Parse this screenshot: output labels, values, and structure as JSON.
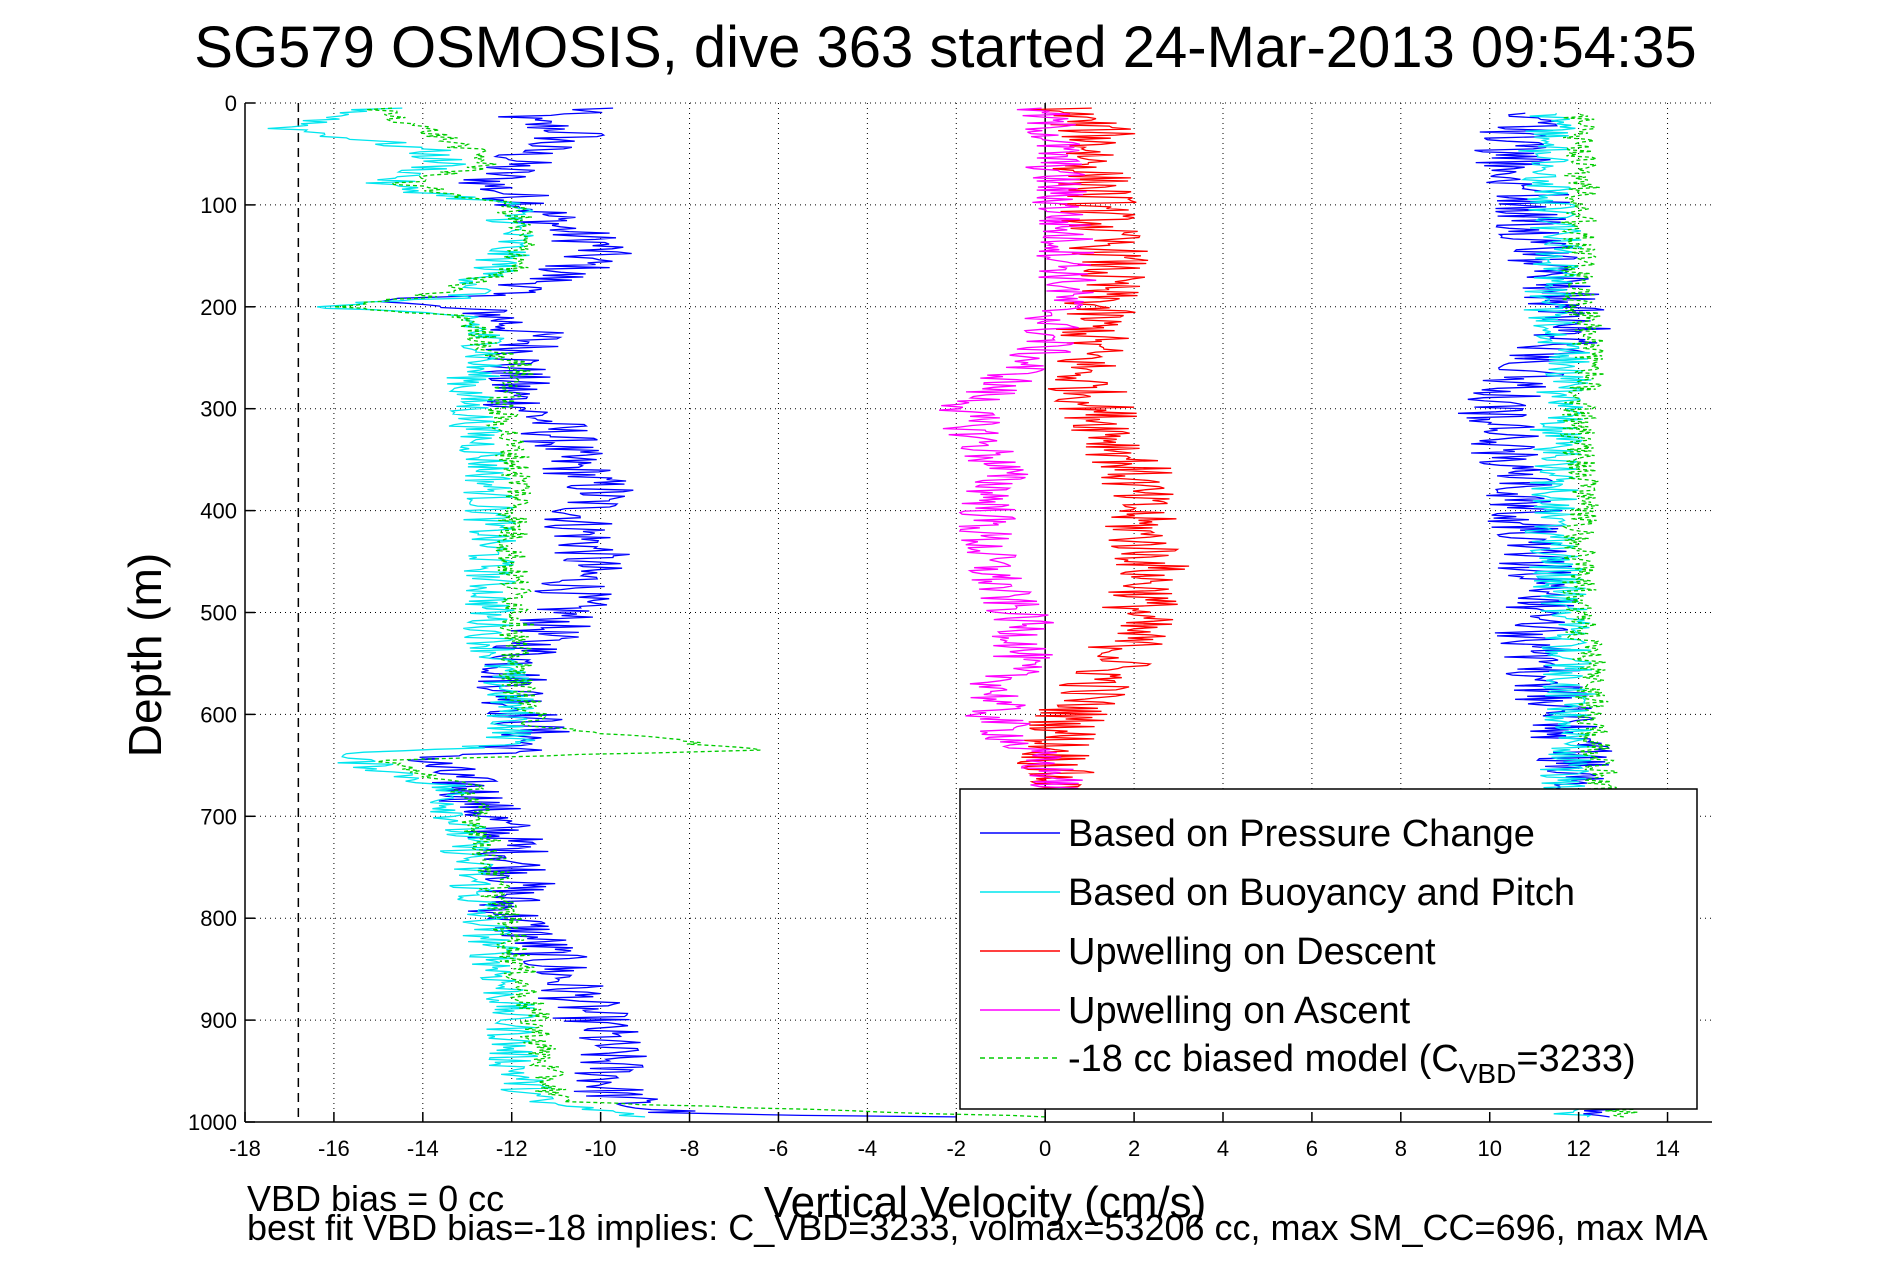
{
  "chart_data": {
    "type": "line",
    "title": "SG579 OSMOSIS, dive 363 started 24-Mar-2013 09:54:35",
    "xlabel": "Vertical Velocity (cm/s)",
    "ylabel": "Depth (m)",
    "xlim": [
      -18,
      15
    ],
    "ylim": [
      0,
      1000
    ],
    "y_reversed": true,
    "x_ticks": [
      -18,
      -16,
      -14,
      -12,
      -10,
      -8,
      -6,
      -4,
      -2,
      0,
      2,
      4,
      6,
      8,
      10,
      12,
      14
    ],
    "y_ticks": [
      0,
      100,
      200,
      300,
      400,
      500,
      600,
      700,
      800,
      900,
      1000
    ],
    "grid": true,
    "legend_position": "bottom-right",
    "vline_dashed_x": -16.8,
    "vline_zero_x": 0,
    "series": [
      {
        "name": "Based on Pressure Change",
        "color": "#0000ff",
        "noise": 0.9,
        "points": [
          [
            5,
            -10
          ],
          [
            15,
            -12
          ],
          [
            30,
            -10.5
          ],
          [
            45,
            -11.5
          ],
          [
            60,
            -12
          ],
          [
            80,
            -12.5
          ],
          [
            100,
            -11.5
          ],
          [
            120,
            -11
          ],
          [
            140,
            -10
          ],
          [
            160,
            -10.5
          ],
          [
            180,
            -11.5
          ],
          [
            190,
            -13
          ],
          [
            195,
            -15
          ],
          [
            205,
            -12.5
          ],
          [
            230,
            -11.5
          ],
          [
            260,
            -12
          ],
          [
            290,
            -12
          ],
          [
            320,
            -11
          ],
          [
            350,
            -10.8
          ],
          [
            380,
            -10
          ],
          [
            410,
            -10.5
          ],
          [
            440,
            -10.2
          ],
          [
            470,
            -10.5
          ],
          [
            500,
            -10.8
          ],
          [
            530,
            -11.5
          ],
          [
            560,
            -12
          ],
          [
            590,
            -11.8
          ],
          [
            620,
            -11.5
          ],
          [
            635,
            -12
          ],
          [
            645,
            -14
          ],
          [
            670,
            -13
          ],
          [
            700,
            -12.5
          ],
          [
            730,
            -12
          ],
          [
            760,
            -11.8
          ],
          [
            790,
            -12.2
          ],
          [
            820,
            -11.5
          ],
          [
            850,
            -11
          ],
          [
            880,
            -10.5
          ],
          [
            910,
            -10
          ],
          [
            940,
            -9.8
          ],
          [
            970,
            -9.8
          ],
          [
            985,
            -9.2
          ],
          [
            992,
            -8
          ],
          [
            995,
            -2
          ]
        ],
        "points_ascent": [
          [
            995,
            12
          ],
          [
            960,
            12.3
          ],
          [
            900,
            12.5
          ],
          [
            850,
            12.6
          ],
          [
            800,
            12.5
          ],
          [
            750,
            12.4
          ],
          [
            700,
            12.3
          ],
          [
            660,
            12.1
          ],
          [
            630,
            11.8
          ],
          [
            600,
            11.5
          ],
          [
            560,
            11.2
          ],
          [
            520,
            11
          ],
          [
            480,
            11.2
          ],
          [
            440,
            11
          ],
          [
            400,
            10.8
          ],
          [
            360,
            10.5
          ],
          [
            330,
            10.3
          ],
          [
            300,
            10
          ],
          [
            280,
            10.5
          ],
          [
            260,
            11
          ],
          [
            240,
            11.5
          ],
          [
            220,
            12
          ],
          [
            200,
            11.8
          ],
          [
            180,
            11.5
          ],
          [
            150,
            11.2
          ],
          [
            120,
            11
          ],
          [
            90,
            11
          ],
          [
            60,
            10.5
          ],
          [
            30,
            10.5
          ],
          [
            10,
            10.8
          ]
        ]
      },
      {
        "name": "Based on Buoyancy and Pitch",
        "color": "#00e5ee",
        "noise": 0.6,
        "points": [
          [
            5,
            -15
          ],
          [
            25,
            -17
          ],
          [
            45,
            -14
          ],
          [
            60,
            -13.5
          ],
          [
            80,
            -15
          ],
          [
            100,
            -12
          ],
          [
            130,
            -12
          ],
          [
            160,
            -12.3
          ],
          [
            190,
            -13
          ],
          [
            200,
            -16.5
          ],
          [
            210,
            -13
          ],
          [
            240,
            -12.5
          ],
          [
            280,
            -13
          ],
          [
            320,
            -12.8
          ],
          [
            360,
            -12.5
          ],
          [
            400,
            -12.5
          ],
          [
            440,
            -12.5
          ],
          [
            480,
            -12.5
          ],
          [
            520,
            -12.5
          ],
          [
            560,
            -12.2
          ],
          [
            600,
            -12
          ],
          [
            630,
            -12
          ],
          [
            640,
            -16
          ],
          [
            670,
            -13.5
          ],
          [
            700,
            -13.2
          ],
          [
            740,
            -13
          ],
          [
            780,
            -12.8
          ],
          [
            820,
            -12.5
          ],
          [
            860,
            -12.2
          ],
          [
            900,
            -12
          ],
          [
            940,
            -12
          ],
          [
            980,
            -11.5
          ],
          [
            995,
            -9
          ]
        ],
        "points_ascent": [
          [
            995,
            11.8
          ],
          [
            950,
            12
          ],
          [
            900,
            12
          ],
          [
            850,
            12
          ],
          [
            800,
            11.8
          ],
          [
            750,
            11.8
          ],
          [
            700,
            11.7
          ],
          [
            660,
            11.7
          ],
          [
            620,
            11.8
          ],
          [
            580,
            11.8
          ],
          [
            540,
            11.7
          ],
          [
            500,
            11.7
          ],
          [
            460,
            11.5
          ],
          [
            420,
            11.3
          ],
          [
            380,
            11.4
          ],
          [
            340,
            11.5
          ],
          [
            300,
            11.5
          ],
          [
            260,
            11.8
          ],
          [
            220,
            11.5
          ],
          [
            200,
            11.2
          ],
          [
            170,
            11.5
          ],
          [
            130,
            11.5
          ],
          [
            90,
            11.3
          ],
          [
            50,
            11.2
          ],
          [
            10,
            11.5
          ]
        ]
      },
      {
        "name": "Upwelling on Descent",
        "color": "#ff0000",
        "noise": 0.9,
        "points": [
          [
            5,
            0.3
          ],
          [
            30,
            1.2
          ],
          [
            60,
            1
          ],
          [
            90,
            1.2
          ],
          [
            120,
            1.2
          ],
          [
            150,
            1.5
          ],
          [
            180,
            1.3
          ],
          [
            210,
            1.1
          ],
          [
            240,
            1
          ],
          [
            270,
            0.8
          ],
          [
            300,
            1.2
          ],
          [
            330,
            1.6
          ],
          [
            360,
            2
          ],
          [
            390,
            2
          ],
          [
            420,
            2.1
          ],
          [
            450,
            2.4
          ],
          [
            480,
            2.3
          ],
          [
            510,
            2
          ],
          [
            540,
            1.8
          ],
          [
            570,
            1.2
          ],
          [
            600,
            0.6
          ],
          [
            630,
            0.3
          ],
          [
            660,
            0.2
          ],
          [
            680,
            0.2
          ]
        ]
      },
      {
        "name": "Upwelling on Ascent",
        "color": "#ff00ff",
        "noise": 0.7,
        "points": [
          [
            5,
            -0.2
          ],
          [
            30,
            0.2
          ],
          [
            60,
            0.2
          ],
          [
            90,
            0.3
          ],
          [
            120,
            0.4
          ],
          [
            150,
            0.5
          ],
          [
            180,
            0.5
          ],
          [
            210,
            0.2
          ],
          [
            240,
            0
          ],
          [
            270,
            -0.8
          ],
          [
            300,
            -1.8
          ],
          [
            330,
            -1.5
          ],
          [
            360,
            -1
          ],
          [
            390,
            -1.2
          ],
          [
            420,
            -1.4
          ],
          [
            450,
            -1.3
          ],
          [
            480,
            -1
          ],
          [
            510,
            -0.5
          ],
          [
            540,
            -0.5
          ],
          [
            570,
            -1
          ],
          [
            600,
            -1.2
          ],
          [
            630,
            -0.6
          ],
          [
            660,
            0.2
          ],
          [
            680,
            0.2
          ]
        ]
      },
      {
        "name": "-18 cc biased model (C",
        "color": "#00cc00",
        "dashed": true,
        "noise": 0.4,
        "points": [
          [
            5,
            -15
          ],
          [
            25,
            -14
          ],
          [
            45,
            -13
          ],
          [
            60,
            -12.5
          ],
          [
            80,
            -14.5
          ],
          [
            100,
            -12
          ],
          [
            130,
            -11.8
          ],
          [
            160,
            -11.8
          ],
          [
            190,
            -14
          ],
          [
            200,
            -16
          ],
          [
            210,
            -13
          ],
          [
            240,
            -12.5
          ],
          [
            260,
            -11.8
          ],
          [
            300,
            -12.3
          ],
          [
            340,
            -12
          ],
          [
            380,
            -11.8
          ],
          [
            420,
            -12
          ],
          [
            460,
            -12
          ],
          [
            500,
            -11.8
          ],
          [
            540,
            -12
          ],
          [
            580,
            -11.8
          ],
          [
            610,
            -11.5
          ],
          [
            635,
            -6.5
          ],
          [
            645,
            -15
          ],
          [
            670,
            -13
          ],
          [
            700,
            -12.8
          ],
          [
            740,
            -12.5
          ],
          [
            780,
            -12.3
          ],
          [
            820,
            -12
          ],
          [
            860,
            -11.8
          ],
          [
            900,
            -11.5
          ],
          [
            940,
            -11.3
          ],
          [
            980,
            -11
          ],
          [
            995,
            0
          ]
        ],
        "points_ascent": [
          [
            995,
            13
          ],
          [
            950,
            12.7
          ],
          [
            900,
            12.6
          ],
          [
            850,
            12.5
          ],
          [
            800,
            12.5
          ],
          [
            750,
            12.5
          ],
          [
            700,
            12.6
          ],
          [
            660,
            12.5
          ],
          [
            620,
            12.3
          ],
          [
            580,
            12.3
          ],
          [
            540,
            12.2
          ],
          [
            500,
            12
          ],
          [
            460,
            12
          ],
          [
            420,
            12
          ],
          [
            380,
            12.2
          ],
          [
            340,
            12
          ],
          [
            300,
            12
          ],
          [
            260,
            12.3
          ],
          [
            220,
            12.2
          ],
          [
            200,
            12
          ],
          [
            160,
            12
          ],
          [
            120,
            12
          ],
          [
            80,
            12.1
          ],
          [
            40,
            12
          ],
          [
            10,
            12
          ]
        ]
      }
    ],
    "legend_model_label_prefix": "-18 cc biased model (C",
    "legend_model_label_sub": "VBD",
    "legend_model_label_suffix": "=3233)"
  },
  "footnotes": {
    "line1": "VBD bias = 0 cc",
    "line2": "best fit VBD bias=-18 implies: C_VBD=3233, volmax=53206 cc, max SM_CC=696, max MA"
  }
}
